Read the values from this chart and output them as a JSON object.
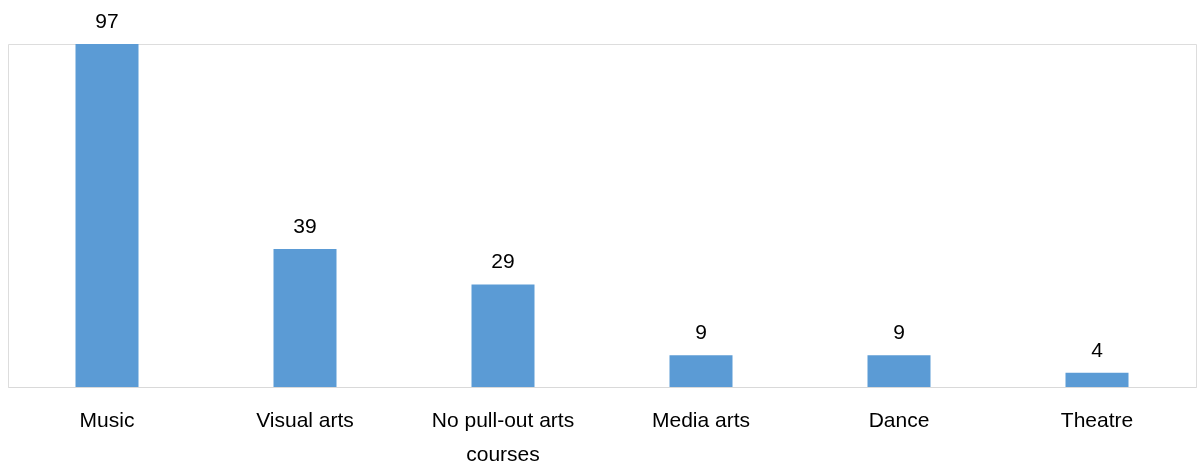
{
  "chart_data": {
    "type": "bar",
    "categories": [
      "Music",
      "Visual arts",
      "No pull-out arts courses",
      "Media arts",
      "Dance",
      "Theatre"
    ],
    "values": [
      97,
      39,
      29,
      9,
      9,
      4
    ],
    "color": "#5b9bd5",
    "data_labels": true
  }
}
